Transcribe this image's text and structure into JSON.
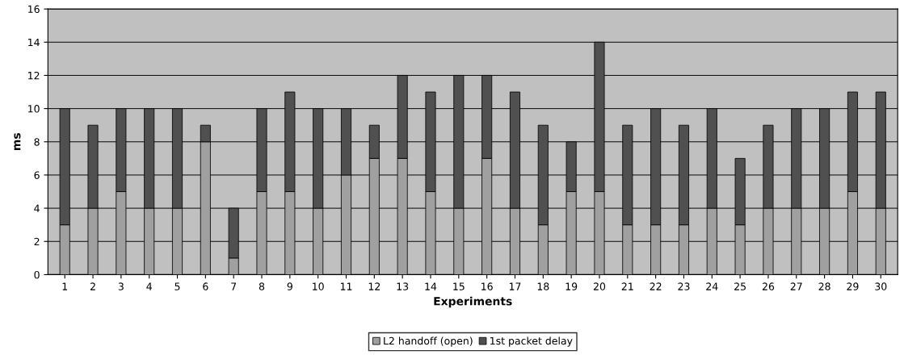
{
  "chart_data": {
    "type": "bar",
    "stacked": true,
    "xlabel": "Experiments",
    "ylabel": "ms",
    "categories": [
      "1",
      "2",
      "3",
      "4",
      "5",
      "6",
      "7",
      "8",
      "9",
      "10",
      "11",
      "12",
      "13",
      "14",
      "15",
      "16",
      "17",
      "18",
      "19",
      "20",
      "21",
      "22",
      "23",
      "24",
      "25",
      "26",
      "27",
      "28",
      "29",
      "30"
    ],
    "series": [
      {
        "name": "L2 handoff (open)",
        "color": "#a0a0a0",
        "values": [
          3,
          4,
          5,
          4,
          4,
          8,
          1,
          5,
          5,
          4,
          6,
          7,
          7,
          5,
          4,
          7,
          4,
          3,
          5,
          5,
          3,
          3,
          3,
          4,
          3,
          4,
          4,
          4,
          5,
          4
        ]
      },
      {
        "name": "1st packet delay",
        "color": "#505050",
        "values": [
          7,
          5,
          5,
          6,
          6,
          1,
          3,
          5,
          6,
          6,
          4,
          2,
          5,
          6,
          8,
          5,
          7,
          6,
          3,
          9,
          6,
          7,
          6,
          6,
          4,
          5,
          6,
          6,
          6,
          7
        ]
      }
    ],
    "ylim": [
      0,
      16
    ],
    "yticks": [
      0,
      2,
      4,
      6,
      8,
      10,
      12,
      14,
      16
    ],
    "grid": "y",
    "legend": "bottom"
  }
}
